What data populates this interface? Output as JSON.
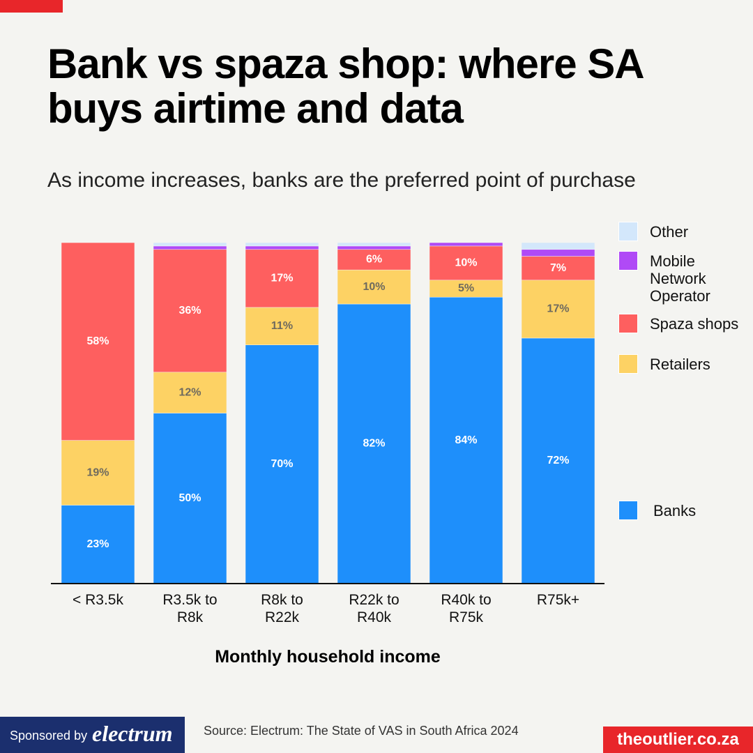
{
  "chart_data": {
    "type": "stacked-bar",
    "title": "Bank vs spaza shop: where SA buys airtime and data",
    "subtitle": "As income increases, banks are the preferred point of purchase",
    "x_label": "Monthly household income",
    "categories": [
      "< R3.5k",
      "R3.5k to R8k",
      "R8k to R22k",
      "R22k to R40k",
      "R40k to R75k",
      "R75k+"
    ],
    "ylim": [
      0,
      100
    ],
    "series": [
      {
        "name": "Banks",
        "color": "#1e8ffb",
        "values": [
          23,
          50,
          70,
          82,
          84,
          72
        ],
        "value_labels": [
          "23%",
          "50%",
          "70%",
          "82%",
          "84%",
          "72%"
        ],
        "label_color": "#ffffff"
      },
      {
        "name": "Retailers",
        "color": "#fdd264",
        "values": [
          19,
          12,
          11,
          10,
          5,
          17
        ],
        "value_labels": [
          "19%",
          "12%",
          "11%",
          "10%",
          "5%",
          "17%"
        ],
        "label_color": "#6e6a5e"
      },
      {
        "name": "Spaza shops",
        "color": "#fe5f5f",
        "values": [
          58,
          36,
          17,
          6,
          10,
          7
        ],
        "value_labels": [
          "58%",
          "36%",
          "17%",
          "6%",
          "10%",
          "7%"
        ],
        "label_color": "#ffffff"
      },
      {
        "name": "Mobile Network Operator",
        "color": "#b04af6",
        "values": [
          0,
          1,
          1,
          1,
          1,
          2
        ]
      },
      {
        "name": "Other",
        "color": "#d3e7fb",
        "values": [
          0,
          1,
          1,
          1,
          0,
          2
        ]
      }
    ]
  },
  "footer": {
    "sponsor_prefix": "Sponsored by",
    "sponsor": "electrum",
    "source": "Source: Electrum: The State of VAS in South Africa 2024",
    "site": "theoutlier.co.za"
  }
}
